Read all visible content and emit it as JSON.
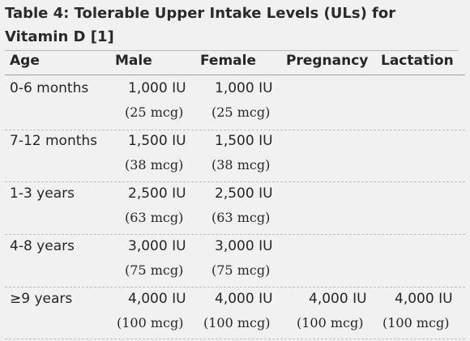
{
  "caption": {
    "text": "Table 4: Tolerable Upper Intake Levels (ULs) for Vitamin D ",
    "ref": "[1]"
  },
  "columns": {
    "age": "Age",
    "male": "Male",
    "female": "Female",
    "pregnancy": "Pregnancy",
    "lactation": "Lactation"
  },
  "rows": [
    {
      "age": "0-6 months",
      "male_iu": "1,000 IU",
      "male_mcg": "(25 mcg)",
      "female_iu": "1,000 IU",
      "female_mcg": "(25 mcg)",
      "pregnancy_iu": "",
      "pregnancy_mcg": "",
      "lactation_iu": "",
      "lactation_mcg": ""
    },
    {
      "age": "7-12 months",
      "male_iu": "1,500 IU",
      "male_mcg": "(38 mcg)",
      "female_iu": "1,500 IU",
      "female_mcg": "(38 mcg)",
      "pregnancy_iu": "",
      "pregnancy_mcg": "",
      "lactation_iu": "",
      "lactation_mcg": ""
    },
    {
      "age": "1-3 years",
      "male_iu": "2,500 IU",
      "male_mcg": "(63 mcg)",
      "female_iu": "2,500 IU",
      "female_mcg": "(63 mcg)",
      "pregnancy_iu": "",
      "pregnancy_mcg": "",
      "lactation_iu": "",
      "lactation_mcg": ""
    },
    {
      "age": "4-8 years",
      "male_iu": "3,000 IU",
      "male_mcg": "(75 mcg)",
      "female_iu": "3,000 IU",
      "female_mcg": "(75 mcg)",
      "pregnancy_iu": "",
      "pregnancy_mcg": "",
      "lactation_iu": "",
      "lactation_mcg": ""
    },
    {
      "age": "≥9 years",
      "male_iu": "4,000 IU",
      "male_mcg": "(100 mcg)",
      "female_iu": "4,000 IU",
      "female_mcg": "(100 mcg)",
      "pregnancy_iu": "4,000 IU",
      "pregnancy_mcg": "(100 mcg)",
      "lactation_iu": "4,000 IU",
      "lactation_mcg": "(100 mcg)"
    }
  ]
}
